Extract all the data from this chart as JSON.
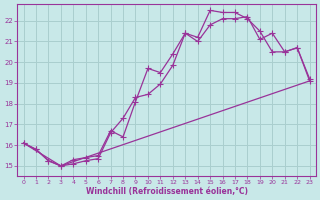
{
  "xlabel": "Windchill (Refroidissement éolien,°C)",
  "bg_color": "#c8e8e8",
  "line_color": "#993399",
  "grid_color": "#aacece",
  "xlim": [
    -0.5,
    23.5
  ],
  "ylim": [
    14.5,
    22.8
  ],
  "yticks": [
    15,
    16,
    17,
    18,
    19,
    20,
    21,
    22
  ],
  "xticks": [
    0,
    1,
    2,
    3,
    4,
    5,
    6,
    7,
    8,
    9,
    10,
    11,
    12,
    13,
    14,
    15,
    16,
    17,
    18,
    19,
    20,
    21,
    22,
    23
  ],
  "line1_x": [
    0,
    1,
    2,
    3,
    4,
    5,
    6,
    7,
    8,
    9,
    10,
    11,
    12,
    13,
    14,
    15,
    16,
    17,
    18,
    19,
    20,
    21,
    22,
    23
  ],
  "line1_y": [
    16.1,
    15.8,
    15.25,
    15.0,
    15.3,
    15.4,
    15.5,
    16.7,
    16.4,
    18.1,
    19.7,
    19.5,
    20.4,
    21.4,
    21.2,
    22.5,
    22.4,
    22.4,
    22.1,
    21.5,
    20.5,
    20.5,
    20.7,
    19.1
  ],
  "line2_x": [
    0,
    1,
    2,
    3,
    4,
    5,
    6,
    7,
    8,
    9,
    10,
    11,
    12,
    13,
    14,
    15,
    16,
    17,
    18,
    19,
    20,
    21,
    22,
    23
  ],
  "line2_y": [
    16.1,
    15.8,
    15.25,
    15.0,
    15.1,
    15.25,
    15.35,
    16.6,
    17.3,
    18.3,
    18.45,
    18.95,
    19.85,
    21.4,
    21.0,
    21.8,
    22.1,
    22.1,
    22.2,
    21.1,
    21.4,
    20.5,
    20.7,
    19.2
  ],
  "line3_x": [
    0,
    3,
    23
  ],
  "line3_y": [
    16.1,
    15.0,
    19.1
  ],
  "marker_size": 4,
  "linewidth": 0.9
}
